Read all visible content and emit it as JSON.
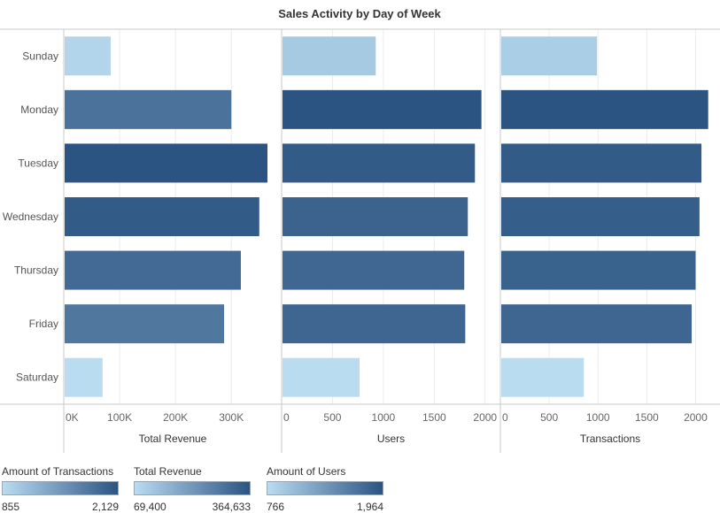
{
  "chart_data": {
    "type": "bar",
    "orientation": "horizontal",
    "title": "Sales Activity by Day of Week",
    "categories": [
      "Sunday",
      "Monday",
      "Tuesday",
      "Wednesday",
      "Thursday",
      "Friday",
      "Saturday"
    ],
    "panels": [
      {
        "name": "Total Revenue",
        "xlabel": "Total Revenue",
        "xlim": [
          0,
          390000
        ],
        "ticks": [
          0,
          100000,
          200000,
          300000
        ],
        "tick_labels": [
          "0K",
          "100K",
          "200K",
          "300K"
        ],
        "values": [
          84000,
          300000,
          364633,
          350000,
          317000,
          287000,
          69400
        ],
        "color_min": 69400,
        "color_max": 364633
      },
      {
        "name": "Users",
        "xlabel": "Users",
        "xlim": [
          0,
          2150
        ],
        "ticks": [
          0,
          500,
          1000,
          1500,
          2000
        ],
        "tick_labels": [
          "0",
          "500",
          "1000",
          "1500",
          "2000"
        ],
        "values": [
          925,
          1964,
          1900,
          1830,
          1795,
          1805,
          766
        ],
        "color_min": 766,
        "color_max": 1964
      },
      {
        "name": "Transactions",
        "xlabel": "Transactions",
        "xlim": [
          0,
          2250
        ],
        "ticks": [
          0,
          500,
          1000,
          1500,
          2000
        ],
        "tick_labels": [
          "0",
          "500",
          "1000",
          "1500",
          "2000"
        ],
        "values": [
          990,
          2129,
          2060,
          2040,
          2000,
          1960,
          855
        ],
        "color_min": 855,
        "color_max": 2129
      }
    ],
    "legends": [
      {
        "title": "Amount of Transactions",
        "min_label": "855",
        "max_label": "2,129"
      },
      {
        "title": "Total Revenue",
        "min_label": "69,400",
        "max_label": "364,633"
      },
      {
        "title": "Amount of Users",
        "min_label": "766",
        "max_label": "1,964"
      }
    ],
    "colors": {
      "low": "#b9dcf1",
      "high": "#2b5482",
      "grid": "#ececec",
      "axis": "#c8c8c8"
    },
    "grid": true
  }
}
